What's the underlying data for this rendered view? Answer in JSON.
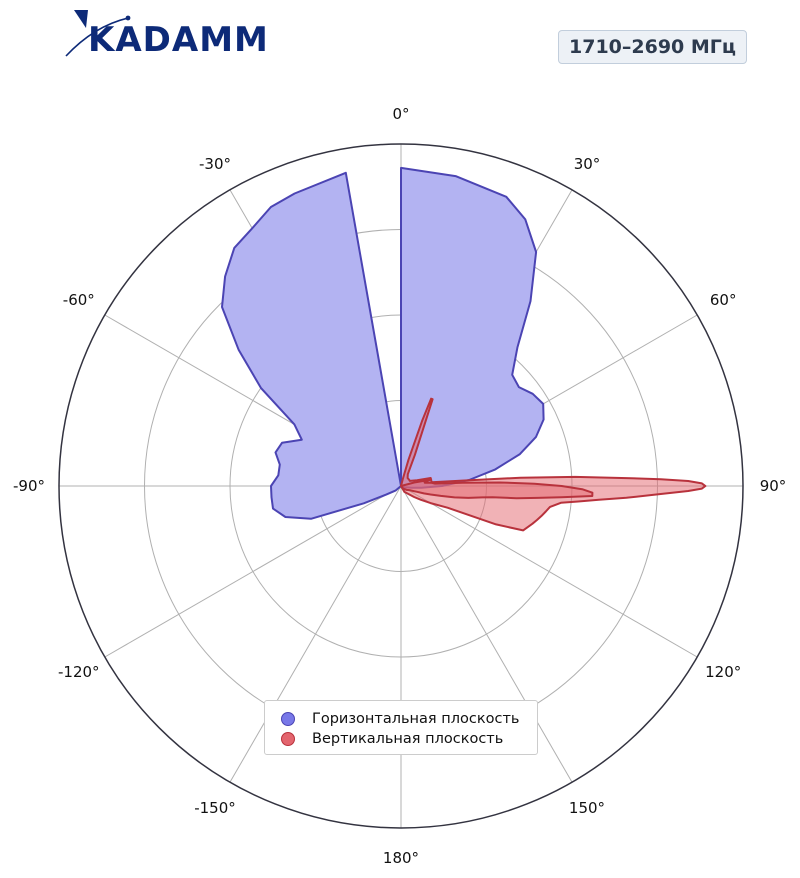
{
  "brand": {
    "logo_text": "KADAMM"
  },
  "frequency_badge": "1710–2690 МГц",
  "colors": {
    "horizontal_fill": "#b3b3f2",
    "horizontal_stroke": "#4b44b3",
    "vertical_fill": "rgba(227,101,110,0.5)",
    "vertical_stroke": "#b8323c",
    "grid": "#b0b0b0",
    "outer_ring": "#333340",
    "brand": "#0d2a78"
  },
  "chart_data": {
    "type": "polar",
    "theta_zero": "top",
    "theta_direction": "clockwise",
    "angle_ticks": [
      "0°",
      "30°",
      "60°",
      "90°",
      "120°",
      "150°",
      "180°",
      "-150°",
      "-120°",
      "-90°",
      "-60°",
      "-30°"
    ],
    "r_grid_fractions": [
      0.25,
      0.5,
      0.75,
      1.0
    ],
    "r_tick_labels_shown": false,
    "grid": true,
    "legend_position": "bottom-center",
    "series": [
      {
        "name": "Горизонтальная плоскость",
        "color": "#7878e8",
        "theta_deg": [
          0,
          10,
          20,
          25,
          30,
          35,
          40,
          45,
          50,
          55,
          60,
          65,
          70,
          75,
          80,
          85,
          90,
          95,
          100,
          110,
          120,
          130,
          150,
          180,
          210,
          230,
          240,
          245,
          250,
          255,
          260,
          265,
          270,
          275,
          280,
          285,
          290,
          295,
          300,
          305,
          310,
          315,
          320,
          325,
          330,
          335,
          340,
          350
        ],
        "r": [
          0.93,
          0.92,
          0.9,
          0.86,
          0.79,
          0.66,
          0.53,
          0.46,
          0.45,
          0.47,
          0.48,
          0.46,
          0.42,
          0.36,
          0.28,
          0.2,
          0.12,
          0.06,
          0.03,
          0.01,
          0.0,
          0.0,
          0.0,
          0.0,
          0.0,
          0.02,
          0.05,
          0.12,
          0.28,
          0.35,
          0.38,
          0.38,
          0.38,
          0.36,
          0.36,
          0.38,
          0.37,
          0.32,
          0.36,
          0.5,
          0.62,
          0.74,
          0.8,
          0.85,
          0.87,
          0.9,
          0.91,
          0.93
        ]
      },
      {
        "name": "Вертикальная плоскость",
        "color": "#e3656e",
        "theta_deg": [
          0,
          8,
          14,
          16,
          18,
          19,
          20,
          24,
          30,
          40,
          50,
          60,
          70,
          75,
          80,
          83,
          85,
          86,
          87,
          88,
          88.5,
          89,
          89.5,
          90,
          90.5,
          91,
          92,
          93,
          94,
          95,
          96,
          98,
          100,
          102,
          104,
          106,
          110,
          112,
          115,
          120,
          125,
          130,
          150,
          180
        ],
        "r": [
          0.0,
          0.0,
          0.02,
          0.08,
          0.2,
          0.27,
          0.27,
          0.1,
          0.04,
          0.03,
          0.03,
          0.03,
          0.05,
          0.09,
          0.09,
          0.09,
          0.18,
          0.35,
          0.51,
          0.66,
          0.76,
          0.84,
          0.88,
          0.89,
          0.88,
          0.84,
          0.74,
          0.66,
          0.58,
          0.52,
          0.47,
          0.44,
          0.43,
          0.42,
          0.41,
          0.4,
          0.38,
          0.3,
          0.15,
          0.1,
          0.07,
          0.05,
          0.02,
          0.0
        ]
      },
      {
        "name": "Вертикальная плоскость (lobe)",
        "color": "#e3656e",
        "theta_deg": [
          75,
          78,
          80,
          82,
          84,
          86,
          87,
          88,
          89,
          90,
          91,
          92,
          93,
          94,
          95,
          96,
          97,
          98,
          100,
          102,
          104,
          106,
          108,
          110,
          112,
          115,
          125,
          140
        ],
        "r": [
          0.04,
          0.09,
          0.07,
          0.07,
          0.09,
          0.1,
          0.18,
          0.29,
          0.39,
          0.47,
          0.53,
          0.56,
          0.56,
          0.47,
          0.4,
          0.34,
          0.27,
          0.24,
          0.2,
          0.16,
          0.12,
          0.09,
          0.07,
          0.05,
          0.04,
          0.03,
          0.02,
          0.01
        ]
      }
    ]
  },
  "legend": {
    "items": [
      {
        "label": "Горизонтальная плоскость",
        "fill": "#7878e8",
        "stroke": "#4b44b3"
      },
      {
        "label": "Вертикальная плоскость",
        "fill": "#e3656e",
        "stroke": "#b8323c"
      }
    ]
  }
}
